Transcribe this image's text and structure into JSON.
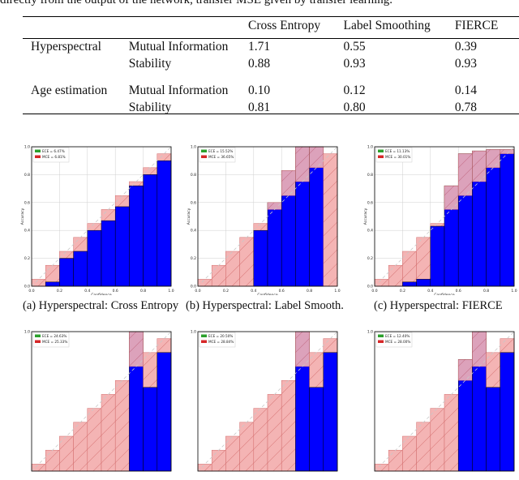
{
  "top_text": "directly from the output of the network, transfer MSE given by transfer learning.",
  "table": {
    "headers": [
      "",
      "",
      "Cross Entropy",
      "Label Smoothing",
      "FIERCE"
    ],
    "rows": [
      {
        "dataset": "Hyperspectral",
        "metric": "Mutual Information",
        "values": [
          "1.71",
          "0.55",
          "0.39"
        ]
      },
      {
        "dataset": "",
        "metric": "Stability",
        "values": [
          "0.88",
          "0.93",
          "0.93"
        ]
      },
      {
        "dataset": "Age estimation",
        "metric": "Mutual Information",
        "values": [
          "0.10",
          "0.12",
          "0.14"
        ]
      },
      {
        "dataset": "",
        "metric": "Stability",
        "values": [
          "0.81",
          "0.80",
          "0.78"
        ]
      }
    ]
  },
  "chart_data": [
    {
      "type": "bar",
      "caption": "(a) Hyperspectral: Cross Entropy",
      "xlabel": "Confidence",
      "ylabel": "Accuracy",
      "xlim": [
        0,
        1
      ],
      "ylim": [
        0,
        1
      ],
      "xticks": [
        "0.0",
        "0.2",
        "0.4",
        "0.6",
        "0.8",
        "1.0"
      ],
      "yticks": [
        "0.0",
        "0.2",
        "0.4",
        "0.6",
        "0.8",
        "1.0"
      ],
      "legend": [
        "ECE = 6.47%",
        "MCE = 6.81%"
      ],
      "legend_colors": [
        "#2ca02c",
        "#d62728"
      ],
      "bin_width": 0.1,
      "accuracy": [
        0.0,
        0.03,
        0.2,
        0.25,
        0.4,
        0.47,
        0.57,
        0.72,
        0.8,
        0.9
      ]
    },
    {
      "type": "bar",
      "caption": "(b) Hyperspectral: Label Smooth.",
      "xlabel": "Confidence",
      "ylabel": "Accuracy",
      "xlim": [
        0,
        1
      ],
      "ylim": [
        0,
        1
      ],
      "xticks": [
        "0.0",
        "0.2",
        "0.4",
        "0.6",
        "0.8",
        "1.0"
      ],
      "yticks": [
        "0.0",
        "0.2",
        "0.4",
        "0.6",
        "0.8",
        "1.0"
      ],
      "legend": [
        "ECE = 15.52%",
        "MCE = 36.65%"
      ],
      "legend_colors": [
        "#2ca02c",
        "#d62728"
      ],
      "bin_width": 0.1,
      "accuracy": [
        0.0,
        0.0,
        0.0,
        0.0,
        0.4,
        0.6,
        0.83,
        1.0,
        1.0,
        0.0
      ]
    },
    {
      "type": "bar",
      "caption": "(c) Hyperspectral: FIERCE",
      "xlabel": "Confidence",
      "ylabel": "Accuracy",
      "xlim": [
        0,
        1
      ],
      "ylim": [
        0,
        1
      ],
      "xticks": [
        "0.0",
        "0.2",
        "0.4",
        "0.6",
        "0.8",
        "1.0"
      ],
      "yticks": [
        "0.0",
        "0.2",
        "0.4",
        "0.6",
        "0.8",
        "1.0"
      ],
      "legend": [
        "ECE = 11.13%",
        "MCE = 30.01%"
      ],
      "legend_colors": [
        "#2ca02c",
        "#d62728"
      ],
      "bin_width": 0.1,
      "accuracy": [
        0.0,
        0.0,
        0.03,
        0.05,
        0.43,
        0.72,
        0.95,
        0.97,
        0.98,
        0.98
      ]
    },
    {
      "type": "bar",
      "xlabel": "",
      "ylabel": "",
      "xlim": [
        0,
        1
      ],
      "ylim": [
        0,
        1
      ],
      "yticks": [
        "1.0"
      ],
      "legend": [
        "ECE = 24.63%",
        "MCE = 25.33%"
      ],
      "legend_colors": [
        "#2ca02c",
        "#d62728"
      ],
      "bin_width": 0.1,
      "accuracy": [
        0,
        0,
        0,
        0,
        0,
        0,
        0,
        1.0,
        0.6,
        0.85
      ]
    },
    {
      "type": "bar",
      "xlabel": "",
      "ylabel": "",
      "xlim": [
        0,
        1
      ],
      "ylim": [
        0,
        1
      ],
      "yticks": [
        "1.0"
      ],
      "legend": [
        "ECE = 20.50%",
        "MCE = 28.84%"
      ],
      "legend_colors": [
        "#2ca02c",
        "#d62728"
      ],
      "bin_width": 0.1,
      "accuracy": [
        0,
        0,
        0,
        0,
        0,
        0,
        0,
        1.0,
        0.6,
        0.85
      ]
    },
    {
      "type": "bar",
      "xlabel": "",
      "ylabel": "",
      "xlim": [
        0,
        1
      ],
      "ylim": [
        0,
        1
      ],
      "yticks": [
        "1.0"
      ],
      "legend": [
        "ECE = 12.40%",
        "MCE = 28.00%"
      ],
      "legend_colors": [
        "#2ca02c",
        "#d62728"
      ],
      "bin_width": 0.1,
      "accuracy": [
        0,
        0,
        0,
        0,
        0,
        0,
        0.8,
        1.0,
        0.6,
        0.85
      ]
    }
  ]
}
